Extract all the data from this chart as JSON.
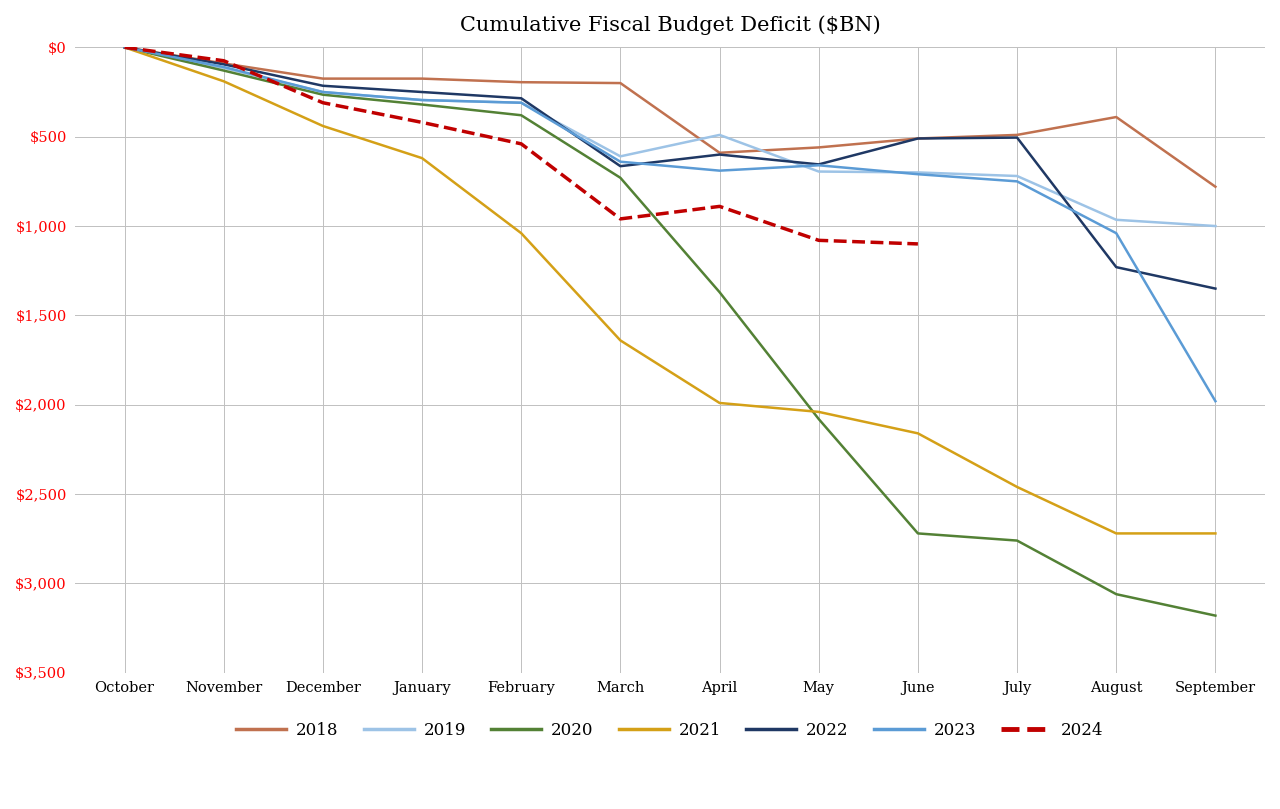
{
  "title": "Cumulative Fiscal Budget Deficit ($BN)",
  "months": [
    "October",
    "November",
    "December",
    "January",
    "February",
    "March",
    "April",
    "May",
    "June",
    "July",
    "August",
    "September"
  ],
  "series": {
    "2018": {
      "color": "#C0714F",
      "linestyle": "solid",
      "linewidth": 1.8,
      "values": [
        0,
        -90,
        -175,
        -175,
        -195,
        -200,
        -590,
        -560,
        -510,
        -490,
        -390,
        -780
      ]
    },
    "2019": {
      "color": "#9DC3E6",
      "linestyle": "solid",
      "linewidth": 1.8,
      "values": [
        0,
        -115,
        -250,
        -295,
        -310,
        -610,
        -490,
        -695,
        -700,
        -720,
        -965,
        -1000
      ]
    },
    "2020": {
      "color": "#538135",
      "linestyle": "solid",
      "linewidth": 1.8,
      "values": [
        0,
        -130,
        -265,
        -320,
        -380,
        -730,
        -1370,
        -2080,
        -2720,
        -2760,
        -3060,
        -3180
      ]
    },
    "2021": {
      "color": "#D4A017",
      "linestyle": "solid",
      "linewidth": 1.8,
      "values": [
        0,
        -190,
        -440,
        -620,
        -1040,
        -1640,
        -1990,
        -2040,
        -2160,
        -2460,
        -2720,
        -2720
      ]
    },
    "2022": {
      "color": "#1F3864",
      "linestyle": "solid",
      "linewidth": 1.8,
      "values": [
        0,
        -95,
        -215,
        -250,
        -285,
        -665,
        -600,
        -655,
        -510,
        -505,
        -1230,
        -1350
      ]
    },
    "2023": {
      "color": "#5B9BD5",
      "linestyle": "solid",
      "linewidth": 1.8,
      "values": [
        0,
        -110,
        -250,
        -295,
        -310,
        -640,
        -690,
        -660,
        -710,
        -750,
        -1040,
        -1980
      ]
    },
    "2024": {
      "color": "#C00000",
      "linestyle": "dashed",
      "linewidth": 2.5,
      "values": [
        0,
        -75,
        -310,
        -420,
        -540,
        -960,
        -890,
        -1080,
        -1100,
        null,
        null,
        null
      ]
    }
  },
  "ylim_min": -3500,
  "ylim_max": 0,
  "yticks": [
    0,
    -500,
    -1000,
    -1500,
    -2000,
    -2500,
    -3000,
    -3500
  ],
  "ytick_labels": [
    "$0",
    "$500",
    "$1,000",
    "$1,500",
    "$2,000",
    "$2,500",
    "$3,000",
    "$3,500"
  ],
  "background_color": "#FFFFFF",
  "grid_color": "#C0C0C0",
  "title_fontsize": 15,
  "axis_label_color": "#FF0000",
  "legend_order": [
    "2018",
    "2019",
    "2020",
    "2021",
    "2022",
    "2023",
    "2024"
  ]
}
